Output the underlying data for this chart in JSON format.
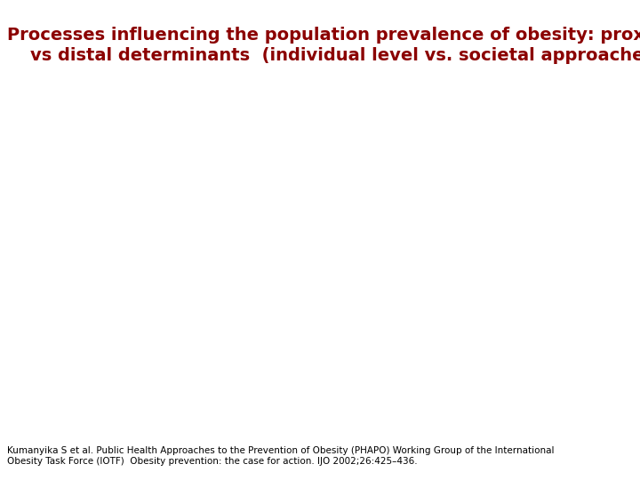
{
  "title_line1": "Processes influencing the population prevalence of obesity: proximal",
  "title_line2": "vs distal determinants  (individual level vs. societal approaches)",
  "title_color": "#8B0000",
  "title_fontsize": 14,
  "title_fontweight": "bold",
  "background_color": "#ffffff",
  "footnote_line1": "Kumanyika S et al. Public Health Approaches to the Prevention of Obesity (PHAPO) Working Group of the International",
  "footnote_line2": "Obesity Task Force (IOTF)  Obesity prevention: the case for action. IJO 2002;26:425–436.",
  "footnote_color": "#000000",
  "footnote_fontsize": 7.5
}
